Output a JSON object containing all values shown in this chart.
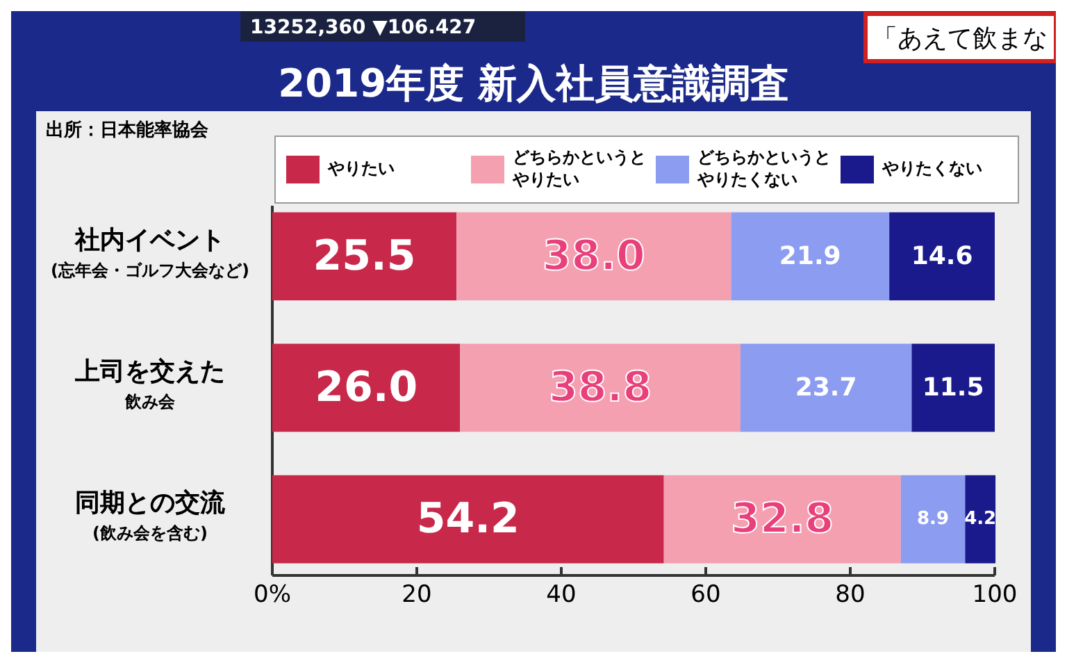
{
  "chart_data": {
    "type": "bar",
    "orientation": "horizontal",
    "stacked": true,
    "title": "2019年度 新入社員意識調査",
    "annotations": [
      "出所：日本能率協会",
      "13252,360 ▼106.427",
      "「あえて飲まな"
    ],
    "categories": [
      "社内イベント(忘年会・ゴルフ大会など)",
      "上司を交えた飲み会",
      "同期との交流(飲み会を含む)"
    ],
    "series": [
      {
        "name": "やりたい",
        "color": "#c8284a",
        "values": [
          25.5,
          26.0,
          54.2
        ],
        "value_labels": [
          "25.5",
          "26.0",
          "54.2"
        ]
      },
      {
        "name": "どちらかというとやりたい",
        "color": "#f4a0b0",
        "values": [
          38.0,
          38.8,
          32.8
        ],
        "value_labels": [
          "38.0",
          "38.8",
          "32.8"
        ]
      },
      {
        "name": "どちらかというとやりたくない",
        "color": "#8c9cf0",
        "values": [
          21.9,
          23.7,
          8.9
        ],
        "value_labels": [
          "21.9",
          "23.7",
          "8.9"
        ]
      },
      {
        "name": "やりたくない",
        "color": "#1a1a8c",
        "values": [
          14.6,
          11.5,
          4.2
        ],
        "value_labels": [
          "14.6",
          "11.5",
          "4.2"
        ]
      }
    ],
    "xlim": [
      0,
      100
    ],
    "xticks": [
      {
        "value": 0,
        "label": "0%"
      },
      20,
      40,
      60,
      80,
      100
    ],
    "legend": "top"
  }
}
